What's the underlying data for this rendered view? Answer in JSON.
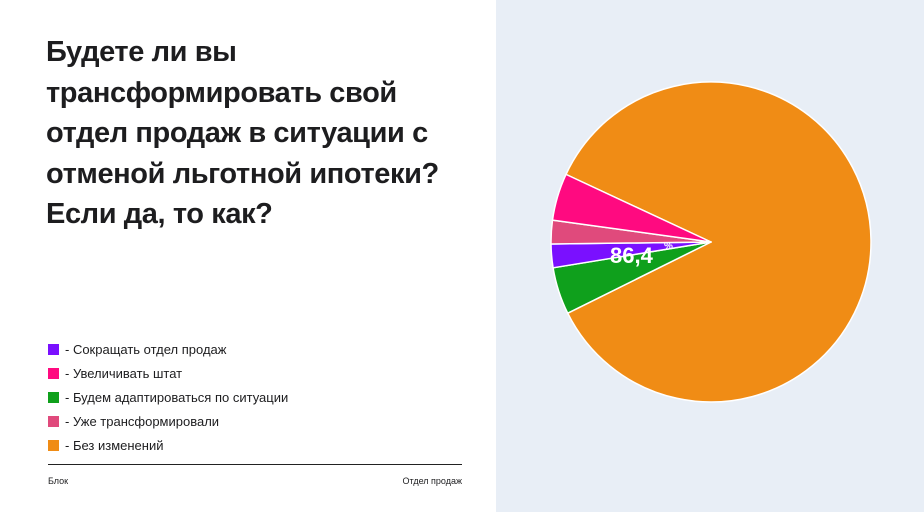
{
  "title": "Будете ли вы трансформировать свой отдел продаж в ситуации с отменой льготной ипотеки? Если да, то как?",
  "footer": {
    "left": "Блок",
    "right": "Отдел продаж"
  },
  "chart_data": {
    "type": "pie",
    "title": "Будете ли вы трансформировать свой отдел продаж в ситуации с отменой льготной ипотеки? Если да, то как?",
    "legend_position": "left",
    "slices": [
      {
        "label": "Без изменений",
        "value": 86.4,
        "color": "#f08c15",
        "display": "86,4",
        "unit": "%"
      },
      {
        "label": "Будем адаптироваться по ситуации",
        "value": 4.8,
        "color": "#0fa01c"
      },
      {
        "label": "Сокращать отдел продаж",
        "value": 2.4,
        "color": "#7a10ff"
      },
      {
        "label": "Уже трансформировали",
        "value": 2.4,
        "color": "#e04a7c"
      },
      {
        "label": "Увеличивать штат",
        "value": 4.8,
        "color": "#ff0a80"
      }
    ],
    "legend": [
      {
        "label": "- Сокращать отдел продаж",
        "color": "#7a10ff"
      },
      {
        "label": "- Увеличивать штат",
        "color": "#ff0a80"
      },
      {
        "label": "- Будем адаптироваться по ситуации",
        "color": "#0fa01c"
      },
      {
        "label": "- Уже трансформировали",
        "color": "#e04a7c"
      },
      {
        "label": "- Без изменений",
        "color": "#f08c15"
      }
    ]
  }
}
